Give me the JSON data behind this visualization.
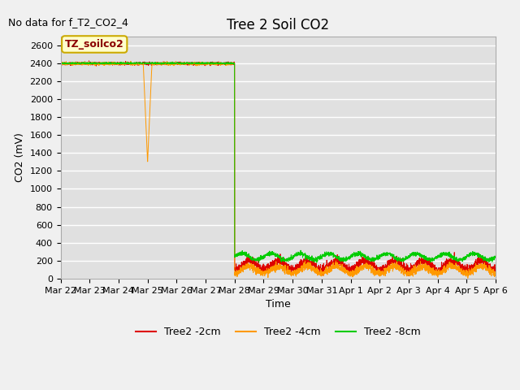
{
  "title": "Tree 2 Soil CO2",
  "no_data_label": "No data for f_T2_CO2_4",
  "ylabel": "CO2 (mV)",
  "xlabel": "Time",
  "legend_label": "TZ_soilco2",
  "ylim": [
    0,
    2700
  ],
  "yticks": [
    0,
    200,
    400,
    600,
    800,
    1000,
    1200,
    1400,
    1600,
    1800,
    2000,
    2200,
    2400,
    2600
  ],
  "xtick_labels": [
    "Mar 22",
    "Mar 23",
    "Mar 24",
    "Mar 25",
    "Mar 26",
    "Mar 27",
    "Mar 28",
    "Mar 29",
    "Mar 30",
    "Mar 31",
    "Apr 1",
    "Apr 2",
    "Apr 3",
    "Apr 4",
    "Apr 5",
    "Apr 6"
  ],
  "fig_bg_color": "#f0f0f0",
  "plot_bg_color": "#e0e0e0",
  "grid_color": "#ffffff",
  "line_colors": {
    "2cm": "#dd0000",
    "4cm": "#ff9900",
    "8cm": "#00cc00"
  },
  "legend_entries": [
    "Tree2 -2cm",
    "Tree2 -4cm",
    "Tree2 -8cm"
  ],
  "title_fontsize": 12,
  "label_fontsize": 9,
  "tick_fontsize": 8,
  "legend_fontsize": 9
}
